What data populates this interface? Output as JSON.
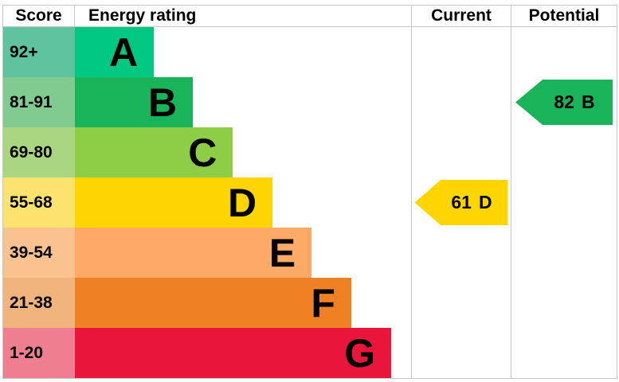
{
  "header": {
    "score": "Score",
    "energy_rating": "Energy rating",
    "current": "Current",
    "potential": "Potential"
  },
  "chart_data": {
    "type": "bar",
    "title": "Energy rating",
    "columns": [
      "Score",
      "Energy rating",
      "Current",
      "Potential"
    ],
    "bands": [
      {
        "band": "A",
        "score_range": "92+",
        "color": "#00c781",
        "tint": "#5ec4a0",
        "width_pct": 23.5
      },
      {
        "band": "B",
        "score_range": "81-91",
        "color": "#19b459",
        "tint": "#7fcb90",
        "width_pct": 35.1
      },
      {
        "band": "C",
        "score_range": "69-80",
        "color": "#8dce46",
        "tint": "#aad681",
        "width_pct": 47.0
      },
      {
        "band": "D",
        "score_range": "55-68",
        "color": "#ffd500",
        "tint": "#fbe36e",
        "width_pct": 58.8
      },
      {
        "band": "E",
        "score_range": "39-54",
        "color": "#fcaa65",
        "tint": "#f9c28f",
        "width_pct": 70.4
      },
      {
        "band": "F",
        "score_range": "21-38",
        "color": "#ef8023",
        "tint": "#f0b47c",
        "width_pct": 82.2
      },
      {
        "band": "G",
        "score_range": "1-20",
        "color": "#e9153b",
        "tint": "#ee7e90",
        "width_pct": 94.1
      }
    ],
    "current": {
      "label": "Current",
      "value": 61,
      "band": "D",
      "color": "#ffd500"
    },
    "potential": {
      "label": "Potential",
      "value": 82,
      "band": "B",
      "color": "#19b459"
    },
    "layout": {
      "border_color": "#c6c6c6",
      "legend": "none",
      "grid": "off"
    }
  }
}
